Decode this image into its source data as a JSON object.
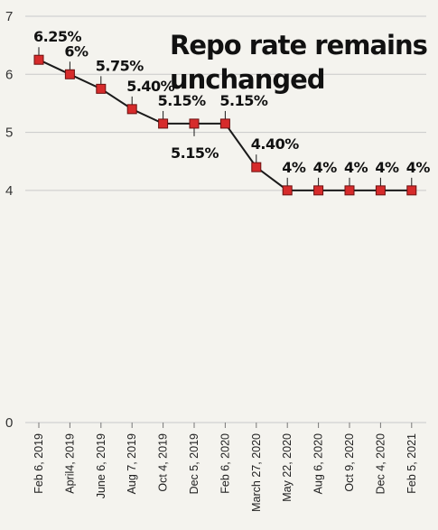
{
  "chart_data": {
    "type": "line",
    "title_lines": [
      "Repo rate remains",
      "unchanged"
    ],
    "xlabel": "",
    "ylabel": "",
    "ylim": [
      0,
      7
    ],
    "yticks": [
      0,
      4,
      5,
      6,
      7
    ],
    "grid": true,
    "categories": [
      "Feb 6, 2019",
      "April4, 2019",
      "June 6, 2019",
      "Aug 7, 2019",
      "Oct 4, 2019",
      "Dec 5, 2019",
      "Feb 6, 2020",
      "March 27, 2020",
      "May 22, 2020",
      "Aug 6, 2020",
      "Oct 9, 2020",
      "Dec 4, 2020",
      "Feb 5, 2021"
    ],
    "values": [
      6.25,
      6,
      5.75,
      5.4,
      5.15,
      5.15,
      5.15,
      4.4,
      4,
      4,
      4,
      4,
      4
    ],
    "labels": [
      "6.25%",
      "6%",
      "5.75%",
      "5.40%",
      "5.15%",
      "5.15%",
      "5.15%",
      "4.40%",
      "4%",
      "4%",
      "4%",
      "4%",
      "4%"
    ],
    "label_position": [
      "above",
      "above",
      "above",
      "above",
      "above",
      "below",
      "above",
      "above",
      "above",
      "above",
      "above",
      "above",
      "above"
    ],
    "colors": {
      "line": "#1a1a1a",
      "marker": "#d62b2b",
      "marker_edge": "#6b1010",
      "grid": "#c9c9c9"
    }
  }
}
